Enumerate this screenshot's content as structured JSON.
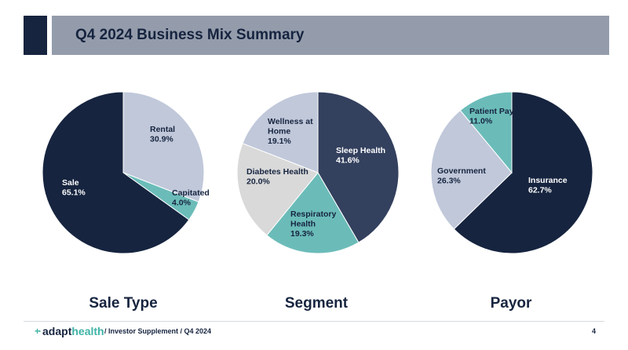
{
  "header": {
    "title": "Q4 2024 Business Mix Summary"
  },
  "colors": {
    "navy": "#16243f",
    "slate": "#33405e",
    "light_blue": "#c0c8da",
    "teal": "#6bbcb9",
    "light_gray": "#d9d9d9"
  },
  "chart_data": [
    {
      "type": "pie",
      "title": "Sale Type",
      "slices": [
        {
          "label": "Rental",
          "value": 30.9,
          "display": "30.9%",
          "color": "#c0c8da"
        },
        {
          "label": "Capitated",
          "value": 4.0,
          "display": "4.0%",
          "color": "#6bbcb9"
        },
        {
          "label": "Sale",
          "value": 65.1,
          "display": "65.1%",
          "color": "#16243f"
        }
      ]
    },
    {
      "type": "pie",
      "title": "Segment",
      "slices": [
        {
          "label": "Sleep Health",
          "value": 41.6,
          "display": "41.6%",
          "color": "#33405e"
        },
        {
          "label": "Respiratory Health",
          "value": 19.3,
          "display": "19.3%",
          "color": "#6bbcb9"
        },
        {
          "label": "Diabetes Health",
          "value": 20.0,
          "display": "20.0%",
          "color": "#d9d9d9"
        },
        {
          "label": "Wellness at Home",
          "value": 19.1,
          "display": "19.1%",
          "color": "#c0c8da"
        }
      ]
    },
    {
      "type": "pie",
      "title": "Payor",
      "slices": [
        {
          "label": "Insurance",
          "value": 62.7,
          "display": "62.7%",
          "color": "#16243f"
        },
        {
          "label": "Government",
          "value": 26.3,
          "display": "26.3%",
          "color": "#c0c8da"
        },
        {
          "label": "Patient Pay",
          "value": 11.0,
          "display": "11.0%",
          "color": "#6bbcb9"
        }
      ]
    }
  ],
  "footer": {
    "logo_a": "adapt",
    "logo_b": "health",
    "text": "/  Investor Supplement  /  Q4 2024",
    "page": "4"
  }
}
